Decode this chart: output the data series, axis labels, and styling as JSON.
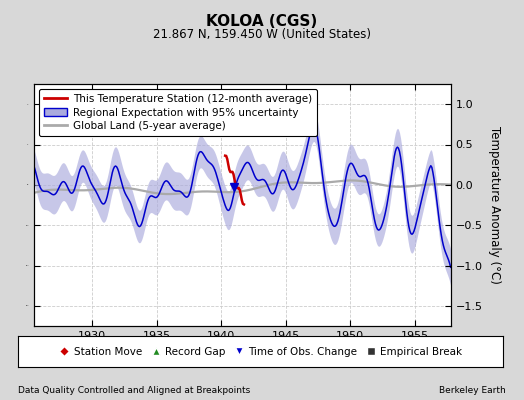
{
  "title": "KOLOA (CGS)",
  "subtitle": "21.867 N, 159.450 W (United States)",
  "ylabel": "Temperature Anomaly (°C)",
  "xlabel_left": "Data Quality Controlled and Aligned at Breakpoints",
  "xlabel_right": "Berkeley Earth",
  "xlim": [
    1925.5,
    1957.8
  ],
  "ylim": [
    -1.75,
    1.25
  ],
  "yticks": [
    -1.5,
    -1.0,
    -0.5,
    0.0,
    0.5,
    1.0
  ],
  "xticks": [
    1930,
    1935,
    1940,
    1945,
    1950,
    1955
  ],
  "bg_color": "#d8d8d8",
  "plot_bg_color": "#ffffff",
  "grid_color": "#cccccc",
  "blue_line_color": "#0000cc",
  "red_line_color": "#cc0000",
  "gray_line_color": "#aaaaaa",
  "fill_color": "#aaaadd",
  "legend_fontsize": 7.5,
  "title_fontsize": 11,
  "subtitle_fontsize": 8.5,
  "tick_fontsize": 8
}
